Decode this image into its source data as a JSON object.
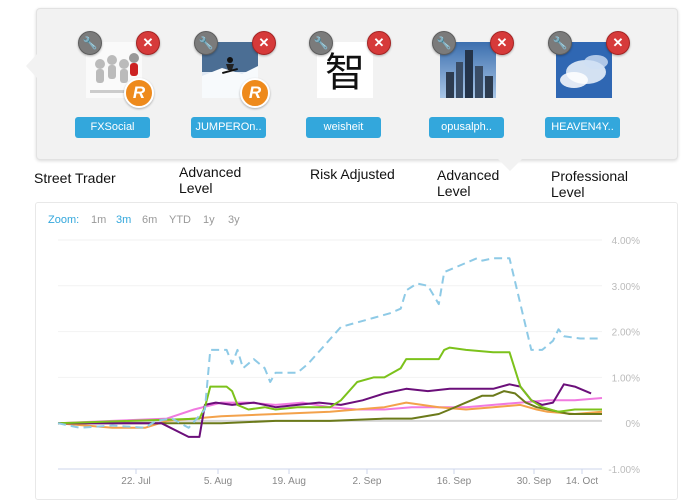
{
  "strategies": [
    {
      "name": "FXSocial",
      "caption": [
        "Street Trader"
      ],
      "thumb": "people-icon",
      "badge": "R"
    },
    {
      "name": "JUMPEROn..",
      "caption": [
        "Advanced",
        "Level"
      ],
      "thumb": "snowboard-icon",
      "badge": "R"
    },
    {
      "name": "weisheit",
      "caption": [
        "Risk Adjusted"
      ],
      "thumb": "kanji-icon",
      "kanji": "智",
      "badge": ""
    },
    {
      "name": "opusalph..",
      "caption": [
        "Advanced",
        "Level"
      ],
      "thumb": "skyline-icon",
      "badge": ""
    },
    {
      "name": "HEAVEN4Y..",
      "caption": [
        "Professional",
        "Level"
      ],
      "thumb": "sky-icon",
      "badge": ""
    }
  ],
  "icons": {
    "edit": "wrench-icon",
    "remove": "close-icon",
    "badge": "r-badge-icon"
  },
  "zoom": {
    "label": "Zoom:",
    "options": [
      "1m",
      "3m",
      "6m",
      "YTD",
      "1y",
      "3y"
    ],
    "selected": "3m"
  },
  "colors": {
    "accent": "#33a7dc",
    "close": "#d63a3a",
    "badge": "#ee8a1c",
    "series": [
      "#8ecae6",
      "#7cc21b",
      "#6b0f7a",
      "#6b7a1a",
      "#f3a24b",
      "#f07ae0"
    ]
  },
  "chart_data": {
    "type": "line",
    "x_ticks": [
      "22. Jul",
      "5. Aug",
      "19. Aug",
      "2. Sep",
      "16. Sep",
      "30. Sep",
      "14. Oct"
    ],
    "y_ticks": [
      "4.00%",
      "3.00%",
      "2.00%",
      "1.00%",
      "0%",
      "-1.00%"
    ],
    "ylim": [
      -1.0,
      4.0
    ],
    "x_range": [
      0,
      100
    ],
    "series": [
      {
        "color": "#8ecae6",
        "dashed": true,
        "points": [
          [
            0,
            0
          ],
          [
            4,
            -0.1
          ],
          [
            10,
            -0.05
          ],
          [
            16,
            -0.1
          ],
          [
            18,
            0.05
          ],
          [
            21,
            0.1
          ],
          [
            24,
            -0.1
          ],
          [
            27,
            0.3
          ],
          [
            28,
            1.6
          ],
          [
            31,
            1.6
          ],
          [
            32,
            1.3
          ],
          [
            33,
            1.6
          ],
          [
            34,
            1.2
          ],
          [
            36,
            1.4
          ],
          [
            38,
            1.2
          ],
          [
            39,
            0.9
          ],
          [
            40,
            1.1
          ],
          [
            44,
            1.1
          ],
          [
            46,
            1.3
          ],
          [
            49,
            1.7
          ],
          [
            52,
            2.1
          ],
          [
            55,
            2.2
          ],
          [
            58,
            2.3
          ],
          [
            61,
            2.4
          ],
          [
            63,
            2.5
          ],
          [
            64,
            2.9
          ],
          [
            66,
            3.05
          ],
          [
            68,
            3.0
          ],
          [
            70,
            2.6
          ],
          [
            71,
            3.3
          ],
          [
            73,
            3.4
          ],
          [
            75,
            3.5
          ],
          [
            77,
            3.6
          ],
          [
            78,
            3.55
          ],
          [
            80,
            3.6
          ],
          [
            83,
            3.6
          ],
          [
            85,
            2.6
          ],
          [
            87,
            1.6
          ],
          [
            89,
            1.6
          ],
          [
            91,
            1.8
          ],
          [
            92,
            2.05
          ],
          [
            93,
            1.9
          ],
          [
            96,
            1.85
          ],
          [
            100,
            1.85
          ]
        ]
      },
      {
        "color": "#7cc21b",
        "dashed": false,
        "points": [
          [
            0,
            0
          ],
          [
            26,
            0.1
          ],
          [
            27,
            0.35
          ],
          [
            28,
            0.8
          ],
          [
            31,
            0.8
          ],
          [
            32,
            0.7
          ],
          [
            33,
            0.4
          ],
          [
            35,
            0.3
          ],
          [
            38,
            0.35
          ],
          [
            40,
            0.3
          ],
          [
            44,
            0.35
          ],
          [
            48,
            0.35
          ],
          [
            50,
            0.35
          ],
          [
            52,
            0.5
          ],
          [
            55,
            0.9
          ],
          [
            58,
            1.0
          ],
          [
            60,
            1.0
          ],
          [
            63,
            1.2
          ],
          [
            64,
            1.4
          ],
          [
            66,
            1.4
          ],
          [
            70,
            1.4
          ],
          [
            71,
            1.6
          ],
          [
            72,
            1.65
          ],
          [
            75,
            1.6
          ],
          [
            80,
            1.55
          ],
          [
            83,
            1.55
          ],
          [
            85,
            0.8
          ],
          [
            87,
            0.5
          ],
          [
            89,
            0.35
          ],
          [
            92,
            0.25
          ],
          [
            95,
            0.3
          ],
          [
            100,
            0.3
          ]
        ]
      },
      {
        "color": "#6b0f7a",
        "dashed": false,
        "points": [
          [
            0,
            0
          ],
          [
            14,
            0
          ],
          [
            19,
            0
          ],
          [
            24,
            -0.3
          ],
          [
            26,
            -0.3
          ],
          [
            27,
            0.4
          ],
          [
            29,
            0.45
          ],
          [
            32,
            0.4
          ],
          [
            36,
            0.45
          ],
          [
            40,
            0.35
          ],
          [
            44,
            0.4
          ],
          [
            48,
            0.45
          ],
          [
            52,
            0.4
          ],
          [
            56,
            0.5
          ],
          [
            60,
            0.65
          ],
          [
            64,
            0.75
          ],
          [
            68,
            0.7
          ],
          [
            72,
            0.75
          ],
          [
            76,
            0.75
          ],
          [
            80,
            0.75
          ],
          [
            83,
            0.85
          ],
          [
            85,
            0.8
          ],
          [
            87,
            0.5
          ],
          [
            89,
            0.4
          ],
          [
            91,
            0.45
          ],
          [
            93,
            0.85
          ],
          [
            95,
            0.8
          ],
          [
            98,
            0.65
          ]
        ]
      },
      {
        "color": "#6b7a1a",
        "dashed": false,
        "points": [
          [
            0,
            0
          ],
          [
            30,
            0
          ],
          [
            40,
            0.05
          ],
          [
            50,
            0.05
          ],
          [
            60,
            0.1
          ],
          [
            65,
            0.1
          ],
          [
            70,
            0.2
          ],
          [
            72,
            0.3
          ],
          [
            75,
            0.45
          ],
          [
            78,
            0.6
          ],
          [
            80,
            0.6
          ],
          [
            82,
            0.7
          ],
          [
            84,
            0.65
          ],
          [
            86,
            0.45
          ],
          [
            88,
            0.35
          ],
          [
            90,
            0.3
          ],
          [
            94,
            0.2
          ],
          [
            100,
            0.2
          ]
        ]
      },
      {
        "color": "#f3a24b",
        "dashed": false,
        "points": [
          [
            0,
            0
          ],
          [
            10,
            -0.1
          ],
          [
            16,
            -0.1
          ],
          [
            20,
            0.05
          ],
          [
            30,
            0.15
          ],
          [
            40,
            0.2
          ],
          [
            50,
            0.25
          ],
          [
            60,
            0.35
          ],
          [
            64,
            0.45
          ],
          [
            70,
            0.35
          ],
          [
            75,
            0.3
          ],
          [
            80,
            0.35
          ],
          [
            85,
            0.4
          ],
          [
            88,
            0.3
          ],
          [
            90,
            0.25
          ],
          [
            95,
            0.2
          ],
          [
            100,
            0.25
          ]
        ]
      },
      {
        "color": "#f07ae0",
        "dashed": false,
        "points": [
          [
            0,
            0
          ],
          [
            10,
            0.05
          ],
          [
            20,
            0.1
          ],
          [
            25,
            0.3
          ],
          [
            30,
            0.45
          ],
          [
            35,
            0.45
          ],
          [
            40,
            0.4
          ],
          [
            45,
            0.45
          ],
          [
            50,
            0.35
          ],
          [
            55,
            0.3
          ],
          [
            60,
            0.3
          ],
          [
            65,
            0.35
          ],
          [
            70,
            0.35
          ],
          [
            75,
            0.35
          ],
          [
            80,
            0.4
          ],
          [
            85,
            0.45
          ],
          [
            90,
            0.5
          ],
          [
            95,
            0.5
          ],
          [
            100,
            0.55
          ]
        ]
      },
      {
        "color": "#d6d6d6",
        "dashed": false,
        "points": [
          [
            0,
            0
          ],
          [
            20,
            0.05
          ],
          [
            40,
            0.05
          ],
          [
            60,
            0.05
          ],
          [
            80,
            0.05
          ],
          [
            100,
            0.05
          ]
        ]
      }
    ]
  }
}
